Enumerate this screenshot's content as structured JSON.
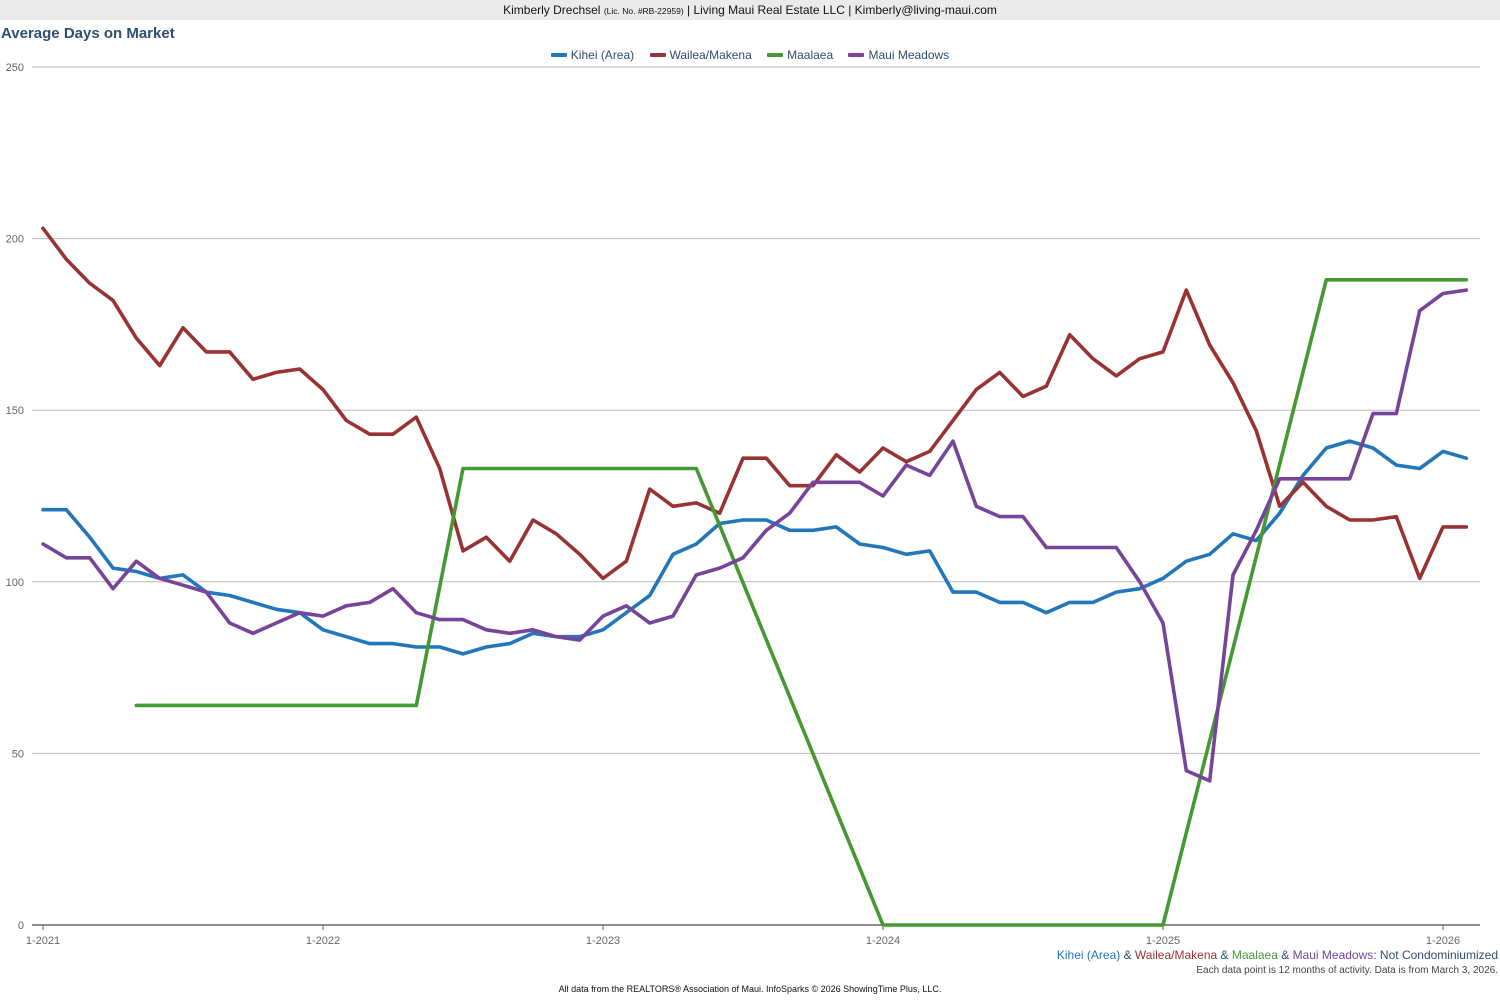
{
  "header": {
    "name": "Kimberly Drechsel",
    "license": "(Lic. No. #RB-22959)",
    "rest": "| Living Maui Real Estate LLC | Kimberly@living-maui.com"
  },
  "colors": {
    "kihei": "#2277bb",
    "wailea": "#993333",
    "maalaea": "#449933",
    "mauimeadows": "#774499",
    "title": "#2d4f72",
    "grid": "#bbbbbb",
    "axis": "#666666"
  },
  "footer": {
    "s1": "Kihei (Area)",
    "amp1": " & ",
    "s2": "Wailea/Makena",
    "amp2": " & ",
    "s3": "Maalaea",
    "amp3": " & ",
    "s4": "Maui Meadows",
    "suffix": ": Not Condominiumized",
    "note": "Each data point is 12 months of activity. Data is from March 3, 2026.",
    "source": "All data from the REALTORS® Association of Maui. InfoSparks © 2026 ShowingTime Plus, LLC."
  },
  "chart_data": {
    "type": "line",
    "title": "Average Days on Market",
    "xlabel": "",
    "ylabel": "",
    "ylim": [
      0,
      250
    ],
    "yticks": [
      0,
      50,
      100,
      150,
      200,
      250
    ],
    "xticks": [
      "1-2021",
      "1-2022",
      "1-2023",
      "1-2024",
      "1-2025",
      "1-2026"
    ],
    "x_start": "2021-01",
    "x_end": "2026-02",
    "grid": true,
    "legend_position": "top-center",
    "series": [
      {
        "name": "Kihei (Area)",
        "color": "#2277bb",
        "values": [
          121,
          121,
          113,
          104,
          103,
          101,
          102,
          97,
          96,
          94,
          92,
          91,
          86,
          84,
          82,
          82,
          81,
          81,
          79,
          81,
          82,
          85,
          84,
          84,
          86,
          91,
          96,
          108,
          111,
          117,
          118,
          118,
          115,
          115,
          116,
          111,
          110,
          108,
          109,
          97,
          97,
          94,
          94,
          91,
          94,
          94,
          97,
          98,
          101,
          106,
          108,
          114,
          112,
          120,
          131,
          139,
          141,
          139,
          134,
          133,
          138,
          136
        ]
      },
      {
        "name": "Wailea/Makena",
        "color": "#993333",
        "values": [
          203,
          194,
          187,
          182,
          171,
          163,
          174,
          167,
          167,
          159,
          161,
          162,
          156,
          147,
          143,
          143,
          148,
          133,
          109,
          113,
          106,
          118,
          114,
          108,
          101,
          106,
          127,
          122,
          123,
          120,
          136,
          136,
          128,
          128,
          137,
          132,
          139,
          135,
          138,
          147,
          156,
          161,
          154,
          157,
          172,
          165,
          160,
          165,
          167,
          185,
          169,
          158,
          144,
          122,
          129,
          122,
          118,
          118,
          119,
          101,
          116,
          116
        ]
      },
      {
        "name": "Maalaea",
        "color": "#449933",
        "values": [
          null,
          null,
          null,
          null,
          64,
          64,
          64,
          64,
          64,
          64,
          64,
          64,
          64,
          64,
          64,
          64,
          64,
          null,
          133,
          133,
          133,
          133,
          133,
          133,
          133,
          133,
          133,
          133,
          133,
          null,
          null,
          null,
          null,
          null,
          null,
          null,
          0,
          0,
          0,
          0,
          0,
          0,
          0,
          0,
          0,
          0,
          0,
          0,
          0,
          null,
          null,
          null,
          null,
          null,
          null,
          188,
          188,
          188,
          188,
          188,
          188,
          188
        ],
        "note_nulls": "interpolated segments"
      },
      {
        "name": "Maui Meadows",
        "color": "#774499",
        "values": [
          111,
          107,
          107,
          98,
          106,
          101,
          99,
          97,
          88,
          85,
          88,
          91,
          90,
          93,
          94,
          98,
          91,
          89,
          89,
          86,
          85,
          86,
          84,
          83,
          90,
          93,
          88,
          90,
          102,
          104,
          107,
          115,
          120,
          129,
          129,
          129,
          125,
          134,
          131,
          141,
          122,
          119,
          119,
          110,
          110,
          110,
          110,
          100,
          88,
          45,
          42,
          102,
          115,
          130,
          130,
          130,
          130,
          149,
          149,
          179,
          184,
          185
        ]
      }
    ]
  }
}
